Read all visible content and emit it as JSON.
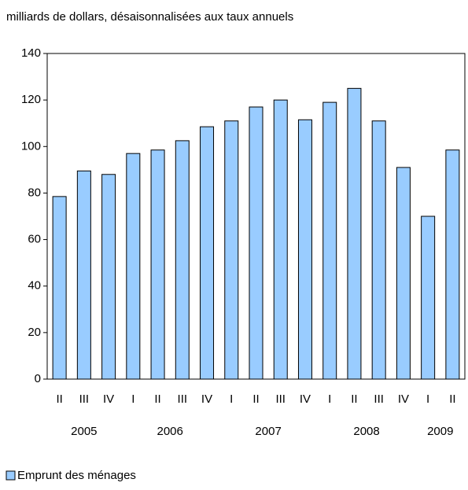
{
  "chart_data": {
    "type": "bar",
    "subtitle": "milliards de dollars, désaisonnalisées aux taux annuels",
    "categories": [
      "II",
      "III",
      "IV",
      "I",
      "II",
      "III",
      "IV",
      "I",
      "II",
      "III",
      "IV",
      "I",
      "II",
      "III",
      "IV",
      "I",
      "II"
    ],
    "x_groups": [
      {
        "label": "2005",
        "count": 3
      },
      {
        "label": "2006",
        "count": 4
      },
      {
        "label": "2007",
        "count": 4
      },
      {
        "label": "2008",
        "count": 4
      },
      {
        "label": "2009",
        "count": 2
      }
    ],
    "series": [
      {
        "name": "Emprunt des ménages",
        "color": "#99ccff",
        "values": [
          78.5,
          89.5,
          88,
          97,
          98.5,
          102.5,
          108.5,
          111,
          117,
          120,
          111.5,
          119,
          125,
          111,
          91,
          70,
          98.5
        ]
      }
    ],
    "ylim": [
      0,
      140
    ],
    "yticks": [
      0,
      20,
      40,
      60,
      80,
      100,
      120,
      140
    ],
    "grid": false,
    "legend": "bottom-left"
  }
}
